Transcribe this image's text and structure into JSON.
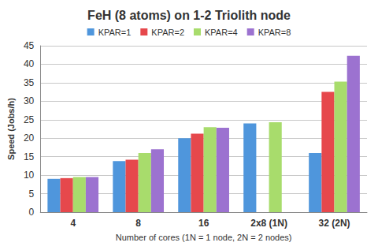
{
  "chart_data": {
    "type": "bar",
    "title": "FeH (8 atoms) on 1-2 Triolith node",
    "x_label": "Number of cores (1N = 1 node, 2N = 2 nodes)",
    "y_label": "Speed (Jobs/h)",
    "categories": [
      "4",
      "8",
      "16",
      "2x8 (1N)",
      "32 (2N)"
    ],
    "series": [
      {
        "name": "KPAR=1",
        "color": "#4f96dc",
        "values": [
          9.0,
          13.8,
          20.0,
          24.0,
          16.0
        ]
      },
      {
        "name": "KPAR=2",
        "color": "#e6484c",
        "values": [
          9.2,
          14.2,
          21.2,
          null,
          32.5
        ]
      },
      {
        "name": "KPAR=4",
        "color": "#a8dc6c",
        "values": [
          9.5,
          16.0,
          23.0,
          24.3,
          35.3
        ]
      },
      {
        "name": "KPAR=8",
        "color": "#9c72d0",
        "values": [
          9.5,
          17.0,
          22.8,
          null,
          42.3
        ]
      }
    ],
    "ylim": [
      0,
      45
    ],
    "yticks": [
      0,
      5,
      10,
      15,
      20,
      25,
      30,
      35,
      40,
      45
    ],
    "grid": true,
    "legend": "top"
  }
}
